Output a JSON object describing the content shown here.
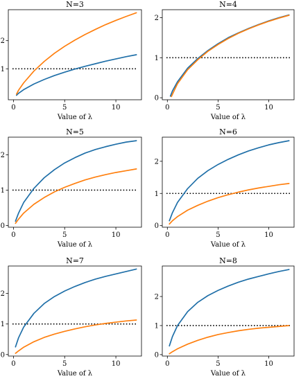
{
  "chart_data": [
    {
      "type": "line",
      "title": "N=3",
      "xlabel": "Value of λ",
      "xlim": [
        -0.5,
        12.5
      ],
      "ylim": [
        -0.1,
        3.1
      ],
      "xticks": [
        0,
        5,
        10
      ],
      "yticks": [
        1,
        2
      ],
      "reference_line": {
        "y": 1,
        "style": "dotted"
      },
      "series": [
        {
          "color": "#1f6fa8",
          "x": [
            0.3,
            0.5,
            1,
            2,
            3,
            4,
            5,
            6,
            7,
            8,
            9,
            10,
            11,
            12
          ],
          "y": [
            0.06,
            0.13,
            0.26,
            0.46,
            0.62,
            0.76,
            0.88,
            0.99,
            1.09,
            1.18,
            1.27,
            1.35,
            1.43,
            1.5
          ]
        },
        {
          "color": "#ff7f0e",
          "x": [
            0.3,
            0.5,
            1,
            2,
            3,
            4,
            5,
            6,
            7,
            8,
            9,
            10,
            11,
            12
          ],
          "y": [
            0.1,
            0.24,
            0.5,
            0.92,
            1.26,
            1.55,
            1.8,
            2.02,
            2.22,
            2.4,
            2.57,
            2.72,
            2.86,
            2.99
          ]
        }
      ]
    },
    {
      "type": "line",
      "title": "N=4",
      "xlabel": "Value of λ",
      "xlim": [
        -0.5,
        12.5
      ],
      "ylim": [
        -0.05,
        2.2
      ],
      "xticks": [
        0,
        5,
        10
      ],
      "yticks": [
        0,
        1,
        2
      ],
      "reference_line": {
        "y": 1,
        "style": "dotted"
      },
      "series": [
        {
          "color": "#1f6fa8",
          "x": [
            0.3,
            0.5,
            1,
            2,
            3,
            4,
            5,
            6,
            7,
            8,
            9,
            10,
            11,
            12
          ],
          "y": [
            0.04,
            0.17,
            0.4,
            0.74,
            0.98,
            1.18,
            1.35,
            1.5,
            1.62,
            1.73,
            1.83,
            1.92,
            2.0,
            2.07
          ]
        },
        {
          "color": "#ff7f0e",
          "x": [
            0.4,
            0.6,
            1,
            2,
            3,
            4,
            5,
            6,
            7,
            8,
            9,
            10,
            11,
            12
          ],
          "y": [
            0.03,
            0.14,
            0.35,
            0.7,
            0.95,
            1.16,
            1.33,
            1.48,
            1.61,
            1.72,
            1.82,
            1.91,
            1.99,
            2.06
          ]
        }
      ]
    },
    {
      "type": "line",
      "title": "N=5",
      "xlabel": "Value of λ",
      "xlim": [
        -0.5,
        12.5
      ],
      "ylim": [
        -0.05,
        2.5
      ],
      "xticks": [
        0,
        5,
        10
      ],
      "yticks": [
        0,
        1,
        2
      ],
      "reference_line": {
        "y": 1,
        "style": "dotted"
      },
      "series": [
        {
          "color": "#1f6fa8",
          "x": [
            0.2,
            0.5,
            1,
            2,
            3,
            4,
            5,
            6,
            7,
            8,
            9,
            10,
            11,
            12
          ],
          "y": [
            0.12,
            0.35,
            0.65,
            1.05,
            1.35,
            1.58,
            1.77,
            1.92,
            2.05,
            2.15,
            2.23,
            2.3,
            2.36,
            2.4
          ]
        },
        {
          "color": "#ff7f0e",
          "x": [
            0.2,
            0.5,
            1,
            2,
            3,
            4,
            5,
            6,
            7,
            8,
            9,
            10,
            11,
            12
          ],
          "y": [
            0.06,
            0.18,
            0.35,
            0.6,
            0.79,
            0.95,
            1.08,
            1.19,
            1.29,
            1.37,
            1.44,
            1.5,
            1.55,
            1.6
          ]
        }
      ]
    },
    {
      "type": "line",
      "title": "N=6",
      "xlabel": "Value of λ",
      "xlim": [
        -0.5,
        12.5
      ],
      "ylim": [
        -0.05,
        2.75
      ],
      "xticks": [
        0,
        5,
        10
      ],
      "yticks": [
        0,
        1,
        2
      ],
      "reference_line": {
        "y": 1,
        "style": "dotted"
      },
      "series": [
        {
          "color": "#1f6fa8",
          "x": [
            0.2,
            0.5,
            1,
            2,
            3,
            4,
            5,
            6,
            7,
            8,
            9,
            10,
            11,
            12
          ],
          "y": [
            0.15,
            0.4,
            0.72,
            1.15,
            1.47,
            1.71,
            1.9,
            2.06,
            2.2,
            2.32,
            2.42,
            2.51,
            2.58,
            2.64
          ]
        },
        {
          "color": "#ff7f0e",
          "x": [
            0.2,
            0.5,
            1,
            2,
            3,
            4,
            5,
            6,
            7,
            8,
            9,
            10,
            11,
            12
          ],
          "y": [
            0.05,
            0.15,
            0.28,
            0.48,
            0.63,
            0.76,
            0.87,
            0.96,
            1.04,
            1.11,
            1.17,
            1.22,
            1.27,
            1.31
          ]
        }
      ]
    },
    {
      "type": "line",
      "title": "N=7",
      "xlabel": "Value of λ",
      "xlim": [
        -0.5,
        12.5
      ],
      "ylim": [
        -0.05,
        2.9
      ],
      "xticks": [
        0,
        5,
        10
      ],
      "yticks": [
        0,
        1,
        2
      ],
      "reference_line": {
        "y": 1,
        "style": "dotted"
      },
      "series": [
        {
          "color": "#1f6fa8",
          "x": [
            0.2,
            0.5,
            1,
            2,
            3,
            4,
            5,
            6,
            7,
            8,
            9,
            10,
            11,
            12
          ],
          "y": [
            0.25,
            0.55,
            0.9,
            1.35,
            1.67,
            1.9,
            2.08,
            2.23,
            2.36,
            2.47,
            2.56,
            2.64,
            2.72,
            2.8
          ]
        },
        {
          "color": "#ff7f0e",
          "x": [
            0.2,
            0.5,
            1,
            2,
            3,
            4,
            5,
            6,
            7,
            8,
            9,
            10,
            11,
            12
          ],
          "y": [
            0.04,
            0.12,
            0.24,
            0.42,
            0.56,
            0.67,
            0.76,
            0.84,
            0.91,
            0.97,
            1.02,
            1.06,
            1.1,
            1.13
          ]
        }
      ]
    },
    {
      "type": "line",
      "title": "N=8",
      "xlabel": "Value of λ",
      "xlim": [
        -0.5,
        12.5
      ],
      "ylim": [
        -0.05,
        3.05
      ],
      "xticks": [
        0,
        5,
        10
      ],
      "yticks": [
        0,
        1,
        2
      ],
      "reference_line": {
        "y": 1,
        "style": "dotted"
      },
      "series": [
        {
          "color": "#1f6fa8",
          "x": [
            0.2,
            0.5,
            1,
            2,
            3,
            4,
            5,
            6,
            7,
            8,
            9,
            10,
            11,
            12
          ],
          "y": [
            0.3,
            0.62,
            1.0,
            1.48,
            1.8,
            2.03,
            2.21,
            2.36,
            2.49,
            2.6,
            2.69,
            2.78,
            2.86,
            2.93
          ]
        },
        {
          "color": "#ff7f0e",
          "x": [
            0.2,
            0.5,
            1,
            2,
            3,
            4,
            5,
            6,
            7,
            8,
            9,
            10,
            11,
            12
          ],
          "y": [
            0.03,
            0.1,
            0.2,
            0.36,
            0.49,
            0.6,
            0.69,
            0.76,
            0.82,
            0.87,
            0.91,
            0.94,
            0.97,
            1.0
          ]
        }
      ]
    }
  ]
}
